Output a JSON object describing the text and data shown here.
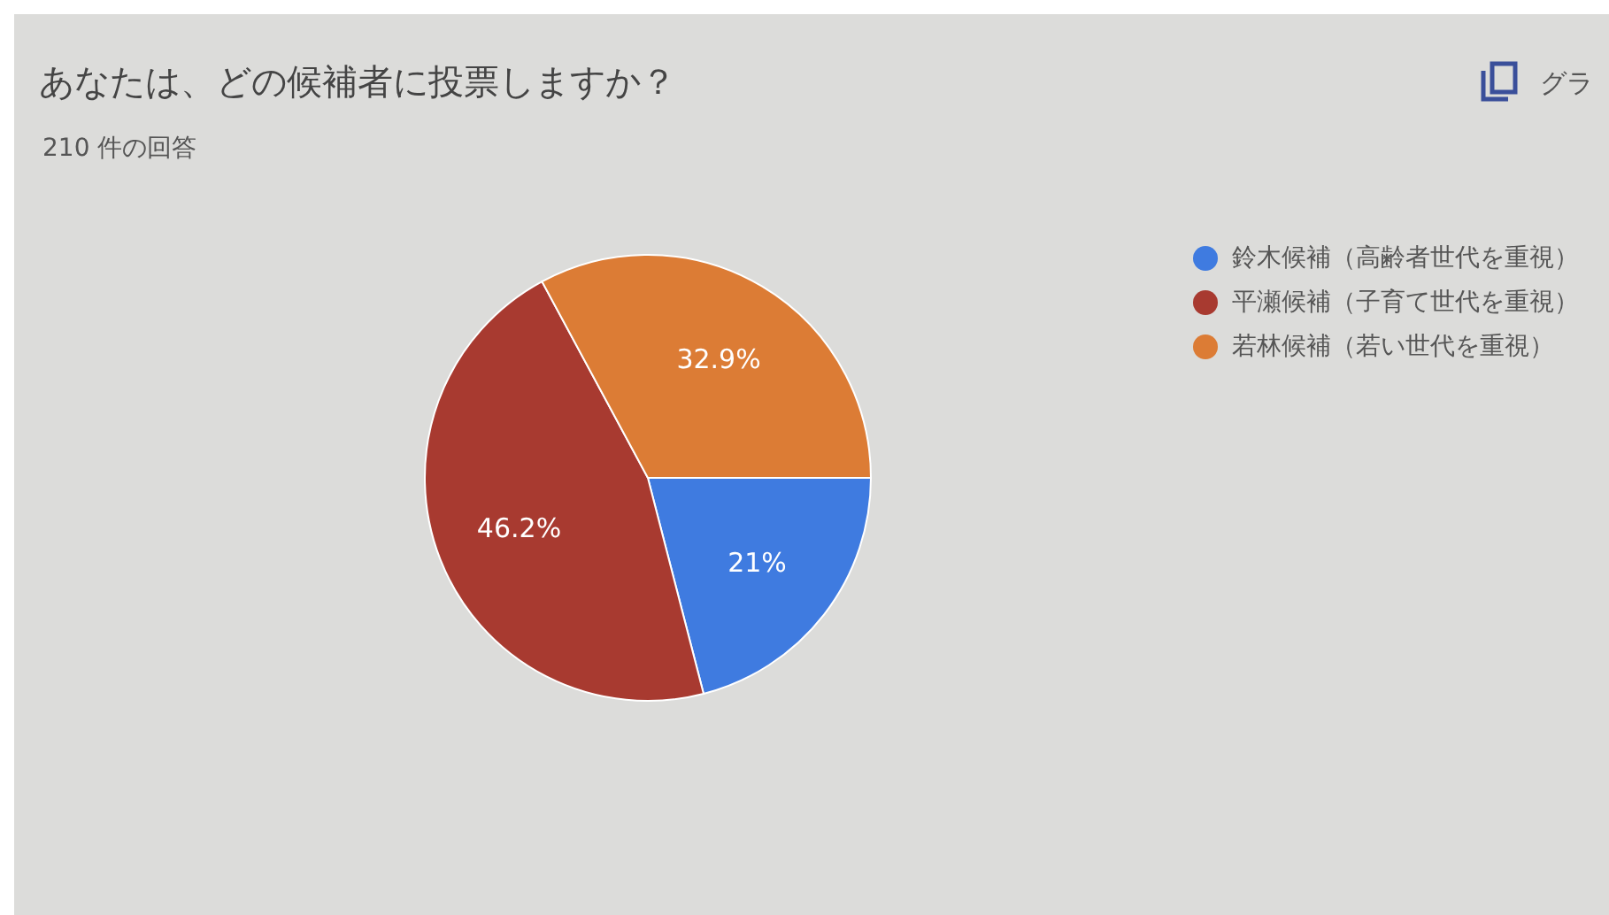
{
  "chart_data": {
    "type": "pie",
    "title": "あなたは、どの候補者に投票しますか？",
    "subtitle": "210 件の回答",
    "categories": [
      "鈴木候補（高齢者世代を重視）",
      "平瀬候補（子育て世代を重視）",
      "若林候補（若い世代を重視）"
    ],
    "values": [
      21,
      46.2,
      32.9
    ],
    "value_labels": [
      "21%",
      "46.2%",
      "32.9%"
    ],
    "colors": [
      "#3f7be0",
      "#a83a30",
      "#dc7c35"
    ],
    "annotations": [
      "グラ"
    ],
    "legend": "top right"
  }
}
